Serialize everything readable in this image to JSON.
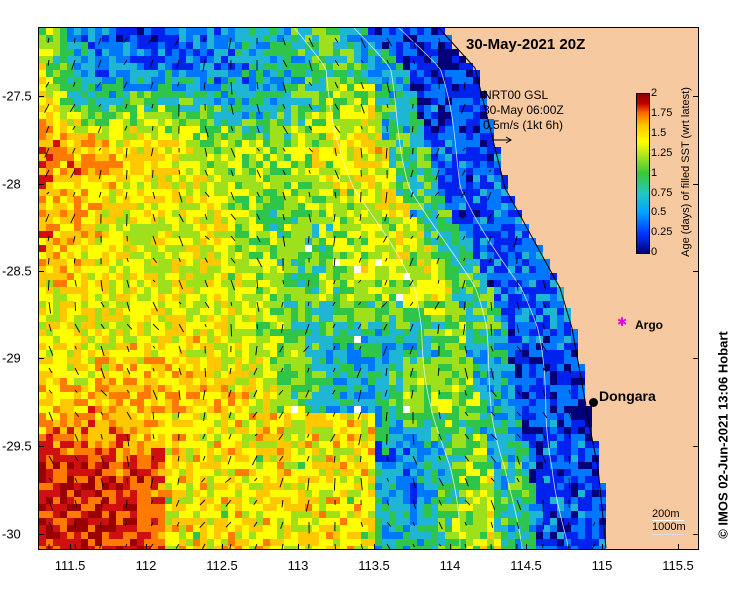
{
  "map": {
    "title": "30-May-2021 20Z",
    "annotation": {
      "line1": "NRT00 GSL",
      "line2": "30-May 06:00Z",
      "line3": "0.5m/s (1kt 6h)"
    },
    "x_ticks": [
      "111.5",
      "112",
      "112.5",
      "113",
      "113.5",
      "114",
      "114.5",
      "115",
      "115.5"
    ],
    "y_ticks": [
      "-27.5",
      "-28",
      "-28.5",
      "-29",
      "-29.5",
      "-30"
    ],
    "colorbar": {
      "label": "Age (days) of filled SST (wrt latest)",
      "ticks": [
        "2",
        "1.75",
        "1.5",
        "1.25",
        "1",
        "0.75",
        "0.5",
        "0.25",
        "0"
      ],
      "range": [
        0,
        2
      ]
    },
    "places": {
      "argo": "Argo",
      "dongara": "Dongara"
    },
    "depth_legend": {
      "d1": "200m",
      "d2": "1000m"
    },
    "credit": "© IMOS 02-Jun-2021 13:06 Hobart",
    "colors": {
      "land": "#f7c9a0",
      "argo_marker": "#e000e0"
    }
  }
}
